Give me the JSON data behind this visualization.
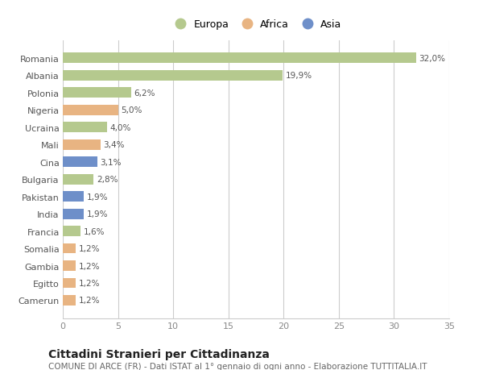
{
  "categories": [
    "Romania",
    "Albania",
    "Polonia",
    "Nigeria",
    "Ucraina",
    "Mali",
    "Cina",
    "Bulgaria",
    "Pakistan",
    "India",
    "Francia",
    "Somalia",
    "Gambia",
    "Egitto",
    "Camerun"
  ],
  "values": [
    32.0,
    19.9,
    6.2,
    5.0,
    4.0,
    3.4,
    3.1,
    2.8,
    1.9,
    1.9,
    1.6,
    1.2,
    1.2,
    1.2,
    1.2
  ],
  "labels": [
    "32,0%",
    "19,9%",
    "6,2%",
    "5,0%",
    "4,0%",
    "3,4%",
    "3,1%",
    "2,8%",
    "1,9%",
    "1,9%",
    "1,6%",
    "1,2%",
    "1,2%",
    "1,2%",
    "1,2%"
  ],
  "continents": [
    "Europa",
    "Europa",
    "Europa",
    "Africa",
    "Europa",
    "Africa",
    "Asia",
    "Europa",
    "Asia",
    "Asia",
    "Europa",
    "Africa",
    "Africa",
    "Africa",
    "Africa"
  ],
  "colors": {
    "Europa": "#b5c98e",
    "Africa": "#e8b482",
    "Asia": "#6e8fc9"
  },
  "xlim": [
    0,
    35
  ],
  "xticks": [
    0,
    5,
    10,
    15,
    20,
    25,
    30,
    35
  ],
  "title": "Cittadini Stranieri per Cittadinanza",
  "subtitle": "COMUNE DI ARCE (FR) - Dati ISTAT al 1° gennaio di ogni anno - Elaborazione TUTTITALIA.IT",
  "bg_color": "#ffffff",
  "plot_bg_color": "#ffffff",
  "bar_height": 0.6,
  "label_fontsize": 7.5,
  "ytick_fontsize": 8,
  "xtick_fontsize": 8,
  "title_fontsize": 10,
  "subtitle_fontsize": 7.5,
  "legend_fontsize": 9
}
